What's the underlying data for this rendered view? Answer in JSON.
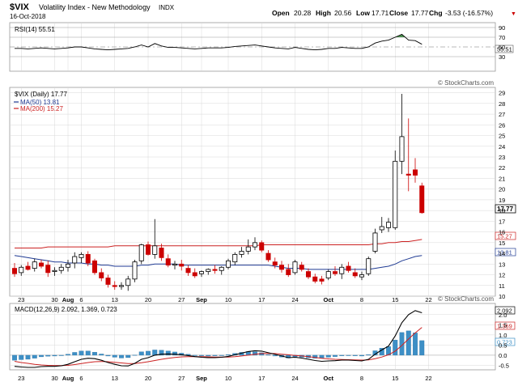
{
  "header": {
    "symbol": "$VIX",
    "name": "Volatility Index - New Methodology",
    "exchange": "INDX",
    "date": "16-Oct-2018",
    "watermark": "© StockCharts.com",
    "open_label": "Open",
    "open": "20.28",
    "high_label": "High",
    "high": "20.56",
    "low_label": "Low",
    "low": "17.71",
    "close_label": "Close",
    "close": "17.77",
    "chg_label": "Chg",
    "chg": "-3.53 (-16.57%)",
    "chg_marker": "▼"
  },
  "colors": {
    "up": "#000000",
    "down": "#cc0000",
    "ma50": "#1f3a93",
    "ma200": "#cc2222",
    "macd_hist": "#3d8fc6",
    "grid": "#d8d8d8",
    "rsi_fill": "#2e7d32"
  },
  "rsi_panel": {
    "label": "RSI(14) 55.51",
    "current_tag": "55.51",
    "levels": [
      "90",
      "70",
      "50",
      "30"
    ]
  },
  "price_panel": {
    "legend_title": "$VIX (Daily) 17.77",
    "legend_ma50": "MA(50) 13.81",
    "legend_ma200": "MA(200) 15.27",
    "tag_close": "17.77",
    "tag_ma200": "15.27",
    "tag_ma50": "13.81",
    "y_ticks": [
      "29",
      "28",
      "27",
      "26",
      "25",
      "24",
      "23",
      "22",
      "21",
      "20",
      "19",
      "18",
      "17",
      "16",
      "15",
      "14",
      "13",
      "12",
      "11",
      "10"
    ]
  },
  "macd_panel": {
    "label": "MACD(12,26,9) 2.092, 1.369, 0.723",
    "tag_macd": "2.092",
    "tag_signal": "1.369",
    "tag_hist": "0.723",
    "y_ticks": [
      "2.0",
      "1.5",
      "1.0",
      "0.5",
      "0.0",
      "-0.5"
    ]
  },
  "x_axis": {
    "labels": [
      "23",
      "30",
      "Aug",
      "6",
      "13",
      "20",
      "27",
      "Sep",
      "10",
      "17",
      "24",
      "Oct",
      "8",
      "15",
      "22"
    ]
  },
  "chart_data": {
    "type": "candlestick",
    "title": "$VIX Volatility Index - New Methodology INDX",
    "ylim": [
      10,
      29.5
    ],
    "candles": [
      {
        "o": 12.6,
        "h": 13.1,
        "l": 11.8,
        "c": 12.1
      },
      {
        "o": 12.2,
        "h": 12.9,
        "l": 11.9,
        "c": 12.7
      },
      {
        "o": 12.8,
        "h": 13.2,
        "l": 12.4,
        "c": 12.5
      },
      {
        "o": 12.6,
        "h": 13.5,
        "l": 12.3,
        "c": 13.2
      },
      {
        "o": 13.1,
        "h": 13.4,
        "l": 12.6,
        "c": 12.8
      },
      {
        "o": 12.9,
        "h": 13.3,
        "l": 11.8,
        "c": 12.2
      },
      {
        "o": 12.3,
        "h": 12.7,
        "l": 11.9,
        "c": 12.4
      },
      {
        "o": 12.4,
        "h": 13.0,
        "l": 12.1,
        "c": 12.7
      },
      {
        "o": 12.7,
        "h": 13.4,
        "l": 12.3,
        "c": 13.0
      },
      {
        "o": 13.1,
        "h": 14.1,
        "l": 12.6,
        "c": 13.7
      },
      {
        "o": 13.6,
        "h": 14.1,
        "l": 13.1,
        "c": 13.9
      },
      {
        "o": 13.9,
        "h": 14.2,
        "l": 12.8,
        "c": 13.1
      },
      {
        "o": 13.3,
        "h": 13.5,
        "l": 12.0,
        "c": 12.2
      },
      {
        "o": 12.2,
        "h": 12.6,
        "l": 11.4,
        "c": 11.7
      },
      {
        "o": 11.7,
        "h": 12.0,
        "l": 10.8,
        "c": 11.1
      },
      {
        "o": 11.0,
        "h": 11.4,
        "l": 10.6,
        "c": 10.9
      },
      {
        "o": 10.9,
        "h": 11.3,
        "l": 10.6,
        "c": 11.0
      },
      {
        "o": 11.0,
        "h": 11.9,
        "l": 10.5,
        "c": 11.6
      },
      {
        "o": 11.6,
        "h": 13.4,
        "l": 11.3,
        "c": 13.2
      },
      {
        "o": 13.3,
        "h": 14.9,
        "l": 13.0,
        "c": 14.8
      },
      {
        "o": 14.8,
        "h": 15.1,
        "l": 13.8,
        "c": 13.9
      },
      {
        "o": 13.9,
        "h": 17.2,
        "l": 13.5,
        "c": 14.7
      },
      {
        "o": 14.5,
        "h": 14.9,
        "l": 13.3,
        "c": 13.6
      },
      {
        "o": 13.5,
        "h": 13.9,
        "l": 12.7,
        "c": 12.9
      },
      {
        "o": 12.9,
        "h": 13.3,
        "l": 12.5,
        "c": 13.0
      },
      {
        "o": 13.0,
        "h": 13.4,
        "l": 12.4,
        "c": 12.8
      },
      {
        "o": 12.6,
        "h": 12.9,
        "l": 11.9,
        "c": 12.2
      },
      {
        "o": 12.2,
        "h": 12.6,
        "l": 11.7,
        "c": 11.9
      },
      {
        "o": 12.1,
        "h": 12.4,
        "l": 11.8,
        "c": 12.3
      },
      {
        "o": 12.3,
        "h": 12.6,
        "l": 12.0,
        "c": 12.5
      },
      {
        "o": 12.5,
        "h": 12.9,
        "l": 12.1,
        "c": 12.4
      },
      {
        "o": 12.4,
        "h": 12.8,
        "l": 12.0,
        "c": 12.7
      },
      {
        "o": 12.7,
        "h": 13.5,
        "l": 12.5,
        "c": 13.3
      },
      {
        "o": 13.2,
        "h": 14.1,
        "l": 12.9,
        "c": 13.9
      },
      {
        "o": 13.9,
        "h": 14.6,
        "l": 13.6,
        "c": 14.2
      },
      {
        "o": 14.2,
        "h": 15.3,
        "l": 13.9,
        "c": 14.6
      },
      {
        "o": 14.6,
        "h": 15.5,
        "l": 14.3,
        "c": 15.0
      },
      {
        "o": 15.0,
        "h": 15.2,
        "l": 14.1,
        "c": 14.3
      },
      {
        "o": 14.0,
        "h": 14.3,
        "l": 13.2,
        "c": 13.4
      },
      {
        "o": 13.2,
        "h": 13.6,
        "l": 12.6,
        "c": 12.9
      },
      {
        "o": 12.9,
        "h": 13.3,
        "l": 12.2,
        "c": 12.5
      },
      {
        "o": 12.5,
        "h": 13.0,
        "l": 11.8,
        "c": 12.0
      },
      {
        "o": 12.2,
        "h": 13.4,
        "l": 12.0,
        "c": 13.2
      },
      {
        "o": 12.9,
        "h": 13.2,
        "l": 12.3,
        "c": 12.5
      },
      {
        "o": 12.3,
        "h": 12.6,
        "l": 11.6,
        "c": 11.8
      },
      {
        "o": 11.8,
        "h": 12.1,
        "l": 11.2,
        "c": 11.4
      },
      {
        "o": 11.6,
        "h": 11.9,
        "l": 11.1,
        "c": 11.4
      },
      {
        "o": 11.7,
        "h": 12.5,
        "l": 11.5,
        "c": 12.3
      },
      {
        "o": 12.3,
        "h": 12.8,
        "l": 11.9,
        "c": 12.1
      },
      {
        "o": 12.1,
        "h": 13.0,
        "l": 11.6,
        "c": 12.7
      },
      {
        "o": 12.8,
        "h": 13.2,
        "l": 12.2,
        "c": 12.4
      },
      {
        "o": 12.2,
        "h": 12.6,
        "l": 11.7,
        "c": 11.9
      },
      {
        "o": 11.8,
        "h": 12.3,
        "l": 11.5,
        "c": 12.0
      },
      {
        "o": 12.1,
        "h": 13.7,
        "l": 11.9,
        "c": 13.5
      },
      {
        "o": 14.2,
        "h": 16.3,
        "l": 14.0,
        "c": 15.9
      },
      {
        "o": 16.2,
        "h": 17.4,
        "l": 15.9,
        "c": 16.5
      },
      {
        "o": 16.4,
        "h": 17.3,
        "l": 16.0,
        "c": 16.9
      },
      {
        "o": 16.4,
        "h": 23.6,
        "l": 16.2,
        "c": 22.6
      },
      {
        "o": 22.6,
        "h": 28.9,
        "l": 21.4,
        "c": 24.9
      },
      {
        "o": 21.4,
        "h": 26.6,
        "l": 19.8,
        "c": 21.3
      },
      {
        "o": 21.8,
        "h": 22.9,
        "l": 20.6,
        "c": 21.3
      },
      {
        "o": 20.3,
        "h": 20.6,
        "l": 17.7,
        "c": 17.8
      }
    ],
    "ma50": [
      13.8,
      13.7,
      13.6,
      13.5,
      13.4,
      13.3,
      13.2,
      13.2,
      13.1,
      13.1,
      13.1,
      13.0,
      13.0,
      12.9,
      12.9,
      12.8,
      12.8,
      12.8,
      12.8,
      12.9,
      12.9,
      13.0,
      13.0,
      13.0,
      13.0,
      12.9,
      12.9,
      12.9,
      12.9,
      12.9,
      12.9,
      12.9,
      12.9,
      12.9,
      12.9,
      12.9,
      12.9,
      12.9,
      12.9,
      12.8,
      12.7,
      12.6,
      12.6,
      12.6,
      12.5,
      12.5,
      12.5,
      12.5,
      12.5,
      12.5,
      12.5,
      12.5,
      12.5,
      12.5,
      12.6,
      12.7,
      12.8,
      13.0,
      13.3,
      13.5,
      13.7,
      13.8
    ],
    "ma200": [
      14.5,
      14.5,
      14.5,
      14.5,
      14.5,
      14.6,
      14.6,
      14.6,
      14.6,
      14.6,
      14.6,
      14.6,
      14.6,
      14.6,
      14.6,
      14.7,
      14.7,
      14.7,
      14.7,
      14.7,
      14.7,
      14.7,
      14.7,
      14.7,
      14.7,
      14.7,
      14.7,
      14.7,
      14.7,
      14.7,
      14.7,
      14.7,
      14.7,
      14.7,
      14.7,
      14.7,
      14.7,
      14.8,
      14.8,
      14.8,
      14.8,
      14.8,
      14.8,
      14.8,
      14.8,
      14.8,
      14.8,
      14.8,
      14.8,
      14.8,
      14.8,
      14.8,
      14.8,
      14.8,
      14.9,
      14.9,
      15.0,
      15.0,
      15.1,
      15.1,
      15.2,
      15.3
    ],
    "rsi": [
      47,
      47,
      46,
      47,
      48,
      47,
      46,
      47,
      48,
      50,
      50,
      48,
      46,
      45,
      44,
      45,
      46,
      47,
      50,
      54,
      50,
      57,
      52,
      49,
      49,
      48,
      47,
      46,
      47,
      48,
      48,
      48,
      49,
      51,
      52,
      53,
      54,
      52,
      50,
      48,
      47,
      46,
      49,
      47,
      45,
      44,
      45,
      47,
      47,
      49,
      48,
      47,
      47,
      50,
      58,
      62,
      64,
      70,
      76,
      64,
      63,
      55.5
    ],
    "macd": [
      -0.55,
      -0.58,
      -0.6,
      -0.6,
      -0.56,
      -0.55,
      -0.55,
      -0.52,
      -0.45,
      -0.32,
      -0.2,
      -0.15,
      -0.17,
      -0.25,
      -0.36,
      -0.45,
      -0.52,
      -0.53,
      -0.4,
      -0.2,
      -0.12,
      0.0,
      0.05,
      0.06,
      0.05,
      0.02,
      -0.02,
      -0.07,
      -0.1,
      -0.12,
      -0.12,
      -0.1,
      -0.06,
      0.02,
      0.1,
      0.18,
      0.22,
      0.2,
      0.12,
      0.04,
      -0.04,
      -0.12,
      -0.1,
      -0.14,
      -0.2,
      -0.26,
      -0.3,
      -0.28,
      -0.27,
      -0.24,
      -0.24,
      -0.26,
      -0.28,
      -0.2,
      0.05,
      0.26,
      0.45,
      0.95,
      1.6,
      2.0,
      2.2,
      2.09
    ],
    "signal": [
      -0.3,
      -0.36,
      -0.4,
      -0.45,
      -0.48,
      -0.5,
      -0.51,
      -0.51,
      -0.5,
      -0.46,
      -0.41,
      -0.36,
      -0.32,
      -0.31,
      -0.32,
      -0.35,
      -0.38,
      -0.41,
      -0.41,
      -0.37,
      -0.32,
      -0.26,
      -0.2,
      -0.15,
      -0.11,
      -0.08,
      -0.07,
      -0.07,
      -0.07,
      -0.08,
      -0.09,
      -0.09,
      -0.09,
      -0.07,
      -0.04,
      0.0,
      0.05,
      0.08,
      0.09,
      0.08,
      0.05,
      0.02,
      -0.01,
      -0.04,
      -0.07,
      -0.11,
      -0.15,
      -0.18,
      -0.2,
      -0.21,
      -0.22,
      -0.23,
      -0.24,
      -0.23,
      -0.17,
      -0.09,
      0.02,
      0.2,
      0.48,
      0.8,
      1.1,
      1.37
    ]
  }
}
